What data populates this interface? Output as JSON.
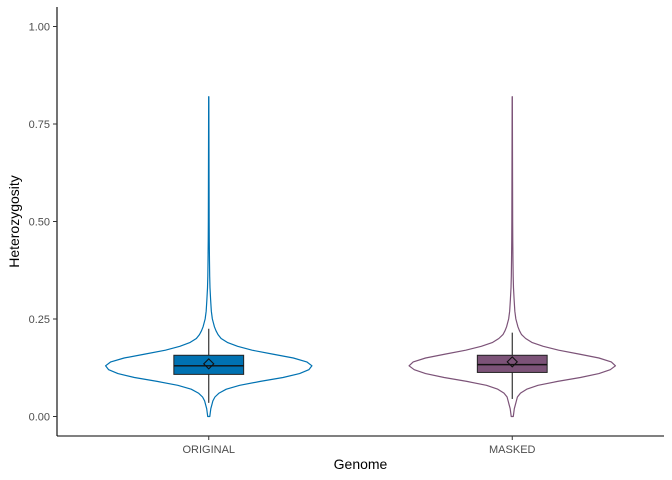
{
  "chart_data": {
    "type": "violin",
    "xlabel": "Genome",
    "ylabel": "Heterozygosity",
    "ylim": [
      -0.05,
      1.05
    ],
    "yticks": [
      0.0,
      0.25,
      0.5,
      0.75,
      1.0
    ],
    "ytick_labels": [
      "0.00",
      "0.25",
      "0.50",
      "0.75",
      "1.00"
    ],
    "grid": false,
    "legend": "none",
    "categories": [
      "ORIGINAL",
      "MASKED"
    ],
    "series": [
      {
        "category": "ORIGINAL",
        "color": "#0072B2",
        "min": 0.0,
        "max": 0.82,
        "q1": 0.108,
        "median": 0.13,
        "q3": 0.157,
        "mean": 0.135,
        "whisker_low": 0.035,
        "whisker_high": 0.225,
        "density": [
          [
            0.0,
            0.01
          ],
          [
            0.01,
            0.015
          ],
          [
            0.02,
            0.02
          ],
          [
            0.03,
            0.03
          ],
          [
            0.04,
            0.04
          ],
          [
            0.05,
            0.06
          ],
          [
            0.06,
            0.1
          ],
          [
            0.07,
            0.17
          ],
          [
            0.08,
            0.3
          ],
          [
            0.09,
            0.5
          ],
          [
            0.1,
            0.72
          ],
          [
            0.11,
            0.88
          ],
          [
            0.12,
            0.97
          ],
          [
            0.13,
            1.0
          ],
          [
            0.14,
            0.95
          ],
          [
            0.15,
            0.82
          ],
          [
            0.16,
            0.62
          ],
          [
            0.17,
            0.42
          ],
          [
            0.18,
            0.28
          ],
          [
            0.19,
            0.18
          ],
          [
            0.2,
            0.12
          ],
          [
            0.21,
            0.09
          ],
          [
            0.22,
            0.07
          ],
          [
            0.23,
            0.055
          ],
          [
            0.24,
            0.045
          ],
          [
            0.25,
            0.035
          ],
          [
            0.27,
            0.025
          ],
          [
            0.3,
            0.018
          ],
          [
            0.33,
            0.012
          ],
          [
            0.36,
            0.009
          ],
          [
            0.4,
            0.007
          ],
          [
            0.45,
            0.005
          ],
          [
            0.5,
            0.004
          ],
          [
            0.6,
            0.003
          ],
          [
            0.7,
            0.002
          ],
          [
            0.82,
            0.001
          ]
        ]
      },
      {
        "category": "MASKED",
        "color": "#7C5378",
        "min": 0.0,
        "max": 0.82,
        "q1": 0.113,
        "median": 0.133,
        "q3": 0.157,
        "mean": 0.14,
        "whisker_low": 0.045,
        "whisker_high": 0.215,
        "density": [
          [
            0.0,
            0.01
          ],
          [
            0.01,
            0.015
          ],
          [
            0.02,
            0.02
          ],
          [
            0.03,
            0.03
          ],
          [
            0.04,
            0.04
          ],
          [
            0.05,
            0.05
          ],
          [
            0.06,
            0.08
          ],
          [
            0.07,
            0.14
          ],
          [
            0.08,
            0.25
          ],
          [
            0.09,
            0.44
          ],
          [
            0.1,
            0.66
          ],
          [
            0.11,
            0.84
          ],
          [
            0.12,
            0.95
          ],
          [
            0.13,
            1.0
          ],
          [
            0.14,
            0.96
          ],
          [
            0.15,
            0.84
          ],
          [
            0.16,
            0.65
          ],
          [
            0.17,
            0.45
          ],
          [
            0.18,
            0.3
          ],
          [
            0.19,
            0.19
          ],
          [
            0.2,
            0.13
          ],
          [
            0.21,
            0.09
          ],
          [
            0.22,
            0.07
          ],
          [
            0.23,
            0.055
          ],
          [
            0.24,
            0.045
          ],
          [
            0.25,
            0.035
          ],
          [
            0.27,
            0.025
          ],
          [
            0.3,
            0.018
          ],
          [
            0.33,
            0.012
          ],
          [
            0.36,
            0.009
          ],
          [
            0.4,
            0.007
          ],
          [
            0.45,
            0.005
          ],
          [
            0.5,
            0.004
          ],
          [
            0.6,
            0.003
          ],
          [
            0.7,
            0.002
          ],
          [
            0.82,
            0.001
          ]
        ]
      }
    ]
  }
}
